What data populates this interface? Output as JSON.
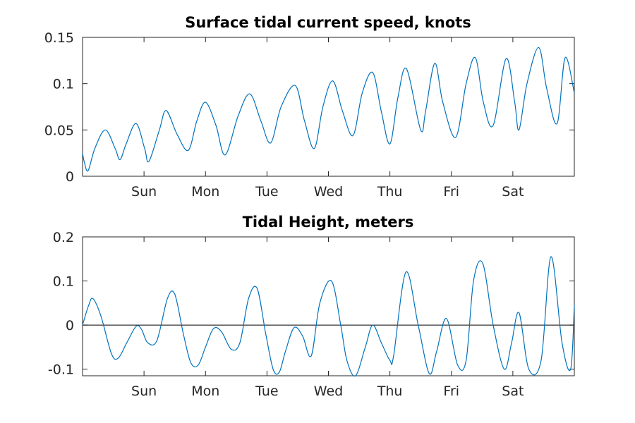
{
  "colors": {
    "series": "#0072bd",
    "zero_line": "#000000",
    "axes": "#262626"
  },
  "chart_data": [
    {
      "type": "line",
      "title": "Surface tidal current speed, knots",
      "xlabel": "",
      "ylabel": "",
      "x_unit": "days",
      "xlim": [
        0,
        8
      ],
      "ylim": [
        0,
        0.15
      ],
      "grid": false,
      "y_ticks": [
        0,
        0.05,
        0.1,
        0.15
      ],
      "y_tick_labels": [
        "0",
        "0.05",
        "0.1",
        "0.15"
      ],
      "x_ticks": [
        1,
        2,
        3,
        4,
        5,
        6,
        7
      ],
      "x_tick_labels": [
        "Sun",
        "Mon",
        "Tue",
        "Wed",
        "Thu",
        "Fri",
        "Sat"
      ],
      "series": [
        {
          "x": [
            0,
            0.03,
            0.09,
            0.2,
            0.37,
            0.53,
            0.61,
            0.71,
            0.87,
            1.01,
            1.08,
            1.25,
            1.36,
            1.54,
            1.72,
            1.86,
            2.0,
            2.17,
            2.32,
            2.53,
            2.72,
            2.9,
            3.06,
            3.23,
            3.46,
            3.61,
            3.77,
            3.91,
            4.07,
            4.23,
            4.4,
            4.55,
            4.72,
            4.86,
            5.0,
            5.13,
            5.27,
            5.5,
            5.58,
            5.73,
            5.86,
            6.07,
            6.24,
            6.39,
            6.52,
            6.68,
            6.89,
            7.03,
            7.1,
            7.23,
            7.42,
            7.55,
            7.72,
            7.85,
            8.0
          ],
          "y": [
            0.025,
            0.015,
            0.006,
            0.03,
            0.05,
            0.03,
            0.018,
            0.035,
            0.057,
            0.03,
            0.016,
            0.05,
            0.071,
            0.045,
            0.028,
            0.06,
            0.08,
            0.055,
            0.023,
            0.065,
            0.089,
            0.06,
            0.036,
            0.075,
            0.098,
            0.06,
            0.03,
            0.075,
            0.103,
            0.07,
            0.044,
            0.09,
            0.112,
            0.07,
            0.035,
            0.085,
            0.116,
            0.05,
            0.07,
            0.122,
            0.08,
            0.042,
            0.1,
            0.128,
            0.08,
            0.055,
            0.127,
            0.08,
            0.05,
            0.1,
            0.139,
            0.095,
            0.057,
            0.128,
            0.09
          ]
        }
      ]
    },
    {
      "type": "line",
      "title": "Tidal Height, meters",
      "xlabel": "",
      "ylabel": "",
      "x_unit": "days",
      "xlim": [
        0,
        8
      ],
      "ylim": [
        -0.115,
        0.2
      ],
      "grid": false,
      "y_ticks": [
        -0.1,
        0,
        0.1,
        0.2
      ],
      "y_tick_labels": [
        "-0.1",
        "0",
        "0.1",
        "0.2"
      ],
      "x_ticks": [
        1,
        2,
        3,
        4,
        5,
        6,
        7
      ],
      "x_tick_labels": [
        "Sun",
        "Mon",
        "Tue",
        "Wed",
        "Thu",
        "Fri",
        "Sat"
      ],
      "reference_line_y": 0,
      "series": [
        {
          "x": [
            0,
            0.1,
            0.17,
            0.3,
            0.47,
            0.58,
            0.72,
            0.87,
            0.96,
            1.06,
            1.21,
            1.38,
            1.5,
            1.64,
            1.76,
            1.88,
            2.0,
            2.13,
            2.26,
            2.42,
            2.56,
            2.7,
            2.84,
            2.98,
            3.1,
            3.2,
            3.3,
            3.44,
            3.58,
            3.72,
            3.86,
            4.05,
            4.2,
            4.3,
            4.44,
            4.6,
            4.72,
            4.86,
            5.0,
            5.06,
            5.26,
            5.46,
            5.64,
            5.76,
            5.92,
            6.1,
            6.24,
            6.36,
            6.51,
            6.68,
            6.86,
            6.98,
            7.1,
            7.26,
            7.46,
            7.62,
            7.8,
            7.94,
            8.0
          ],
          "y": [
            0.0,
            0.045,
            0.06,
            0.02,
            -0.065,
            -0.075,
            -0.04,
            -0.003,
            -0.01,
            -0.04,
            -0.035,
            0.06,
            0.07,
            -0.02,
            -0.085,
            -0.091,
            -0.05,
            -0.008,
            -0.015,
            -0.055,
            -0.04,
            0.06,
            0.083,
            -0.02,
            -0.1,
            -0.107,
            -0.06,
            -0.006,
            -0.025,
            -0.07,
            0.05,
            0.1,
            0.0,
            -0.08,
            -0.115,
            -0.05,
            0.0,
            -0.04,
            -0.08,
            -0.07,
            0.12,
            0.0,
            -0.11,
            -0.06,
            0.015,
            -0.09,
            -0.08,
            0.1,
            0.14,
            0.0,
            -0.1,
            -0.04,
            0.028,
            -0.1,
            -0.08,
            0.155,
            -0.04,
            -0.1,
            0.045
          ]
        }
      ]
    }
  ]
}
